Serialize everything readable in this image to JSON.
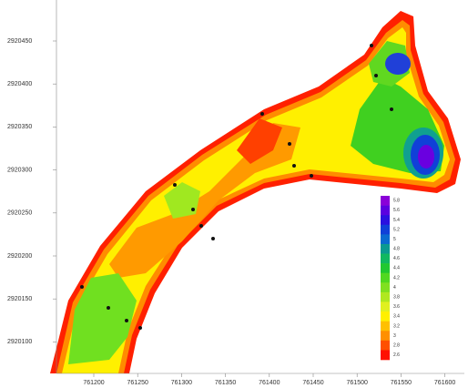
{
  "x_axis": {
    "labels": [
      "761200",
      "761250",
      "761300",
      "761350",
      "761400",
      "761450",
      "761500",
      "761550",
      "761600"
    ]
  },
  "y_axis": {
    "labels": [
      "2920450",
      "2920400",
      "2920350",
      "2920300",
      "2920250",
      "2920200",
      "2920150",
      "2920100"
    ]
  },
  "legend": {
    "labels": [
      "5.8",
      "5.6",
      "5.4",
      "5.2",
      "5",
      "4.8",
      "4.6",
      "4.4",
      "4.2",
      "4",
      "3.8",
      "3.6",
      "3.4",
      "3.2",
      "3",
      "2.8",
      "2.6"
    ],
    "colors": [
      "#8a00d8",
      "#5a00e0",
      "#2a10e0",
      "#1040d8",
      "#0a6ad0",
      "#0a9a90",
      "#10b860",
      "#20c830",
      "#50d820",
      "#80e020",
      "#b0e820",
      "#e0f020",
      "#fff000",
      "#ffc000",
      "#ff9000",
      "#ff5000",
      "#ff1000"
    ]
  }
}
